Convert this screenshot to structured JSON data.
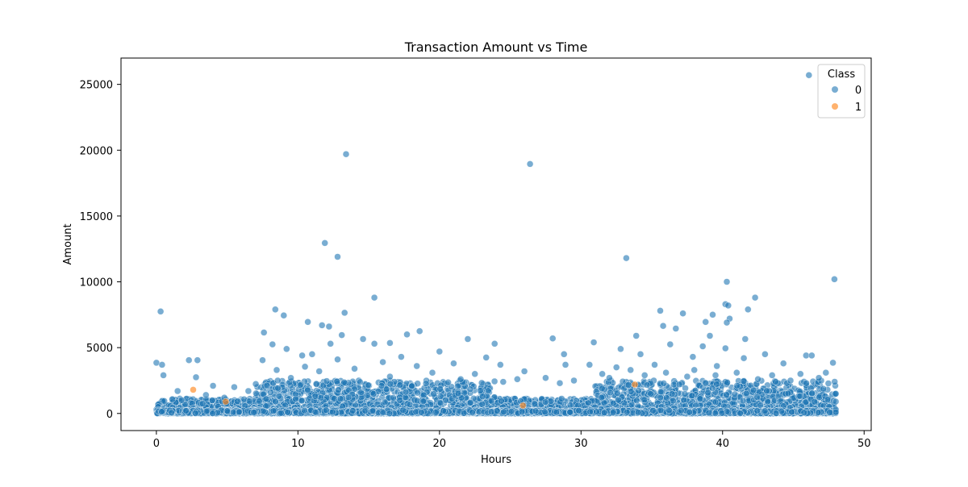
{
  "chart_data": {
    "type": "scatter",
    "title": "Transaction Amount vs Time",
    "xlabel": "Hours",
    "ylabel": "Amount",
    "xlim": [
      -2.5,
      50.5
    ],
    "ylim": [
      -1300,
      27000
    ],
    "xticks": [
      0,
      10,
      20,
      30,
      40,
      50
    ],
    "yticks": [
      0,
      5000,
      10000,
      15000,
      20000,
      25000
    ],
    "grid": false,
    "legend": {
      "title": "Class",
      "placement": "top-right",
      "entries": [
        "0",
        "1"
      ]
    },
    "colors": {
      "0": "#1f77b4",
      "1": "#ff7f0e"
    },
    "point_alpha": 0.6,
    "series": [
      {
        "name": "0",
        "points": [
          [
            46.1,
            25700
          ],
          [
            13.4,
            19700
          ],
          [
            26.4,
            18950
          ],
          [
            11.9,
            12950
          ],
          [
            12.8,
            11900
          ],
          [
            33.2,
            11800
          ],
          [
            47.9,
            10200
          ],
          [
            40.3,
            10000
          ],
          [
            15.4,
            8800
          ],
          [
            42.3,
            8800
          ],
          [
            40.2,
            8300
          ],
          [
            40.4,
            8200
          ],
          [
            8.4,
            7900
          ],
          [
            35.6,
            7800
          ],
          [
            41.8,
            7900
          ],
          [
            0.3,
            7750
          ],
          [
            13.3,
            7650
          ],
          [
            37.2,
            7600
          ],
          [
            39.3,
            7500
          ],
          [
            9.0,
            7450
          ],
          [
            40.5,
            7200
          ],
          [
            10.7,
            6950
          ],
          [
            38.8,
            6950
          ],
          [
            40.3,
            6900
          ],
          [
            11.7,
            6700
          ],
          [
            35.8,
            6650
          ],
          [
            12.2,
            6600
          ],
          [
            36.7,
            6450
          ],
          [
            18.6,
            6250
          ],
          [
            7.6,
            6150
          ],
          [
            17.7,
            6000
          ],
          [
            13.1,
            5950
          ],
          [
            39.1,
            5900
          ],
          [
            33.9,
            5900
          ],
          [
            22.0,
            5650
          ],
          [
            28.0,
            5700
          ],
          [
            41.6,
            5650
          ],
          [
            30.9,
            5400
          ],
          [
            12.3,
            5300
          ],
          [
            14.6,
            5650
          ],
          [
            8.2,
            5250
          ],
          [
            15.4,
            5300
          ],
          [
            16.5,
            5350
          ],
          [
            23.9,
            5300
          ],
          [
            36.3,
            5250
          ],
          [
            38.6,
            5100
          ],
          [
            32.8,
            4900
          ],
          [
            40.2,
            4950
          ],
          [
            9.2,
            4900
          ],
          [
            11.0,
            4500
          ],
          [
            43.0,
            4500
          ],
          [
            45.9,
            4400
          ],
          [
            10.3,
            4400
          ],
          [
            28.8,
            4500
          ],
          [
            34.2,
            4500
          ],
          [
            20.0,
            4700
          ],
          [
            37.9,
            4300
          ],
          [
            41.5,
            4200
          ],
          [
            46.3,
            4400
          ],
          [
            17.3,
            4300
          ],
          [
            23.3,
            4250
          ],
          [
            0.0,
            3850
          ],
          [
            0.4,
            3700
          ],
          [
            2.3,
            4050
          ],
          [
            2.9,
            4050
          ],
          [
            7.5,
            4050
          ],
          [
            12.8,
            4100
          ],
          [
            16.0,
            3900
          ],
          [
            21.0,
            3800
          ],
          [
            24.3,
            3700
          ],
          [
            28.9,
            3700
          ],
          [
            30.6,
            3700
          ],
          [
            35.2,
            3700
          ],
          [
            44.3,
            3800
          ],
          [
            47.8,
            3850
          ],
          [
            18.4,
            3600
          ],
          [
            26.0,
            3200
          ],
          [
            32.5,
            3500
          ],
          [
            39.6,
            3600
          ],
          [
            10.5,
            3550
          ],
          [
            5.5,
            2000
          ],
          [
            0.5,
            2900
          ],
          [
            2.8,
            2750
          ],
          [
            4.0,
            2100
          ],
          [
            6.5,
            1700
          ],
          [
            1.5,
            1700
          ],
          [
            3.5,
            1400
          ],
          [
            4.8,
            1200
          ],
          [
            8.5,
            3300
          ],
          [
            11.5,
            3200
          ],
          [
            14.0,
            3400
          ],
          [
            19.5,
            3100
          ],
          [
            22.5,
            3000
          ],
          [
            25.5,
            2600
          ],
          [
            27.5,
            2700
          ],
          [
            29.5,
            2500
          ],
          [
            31.5,
            3000
          ],
          [
            33.5,
            3300
          ],
          [
            36.0,
            3100
          ],
          [
            38.0,
            3300
          ],
          [
            41.0,
            3100
          ],
          [
            43.5,
            2900
          ],
          [
            45.5,
            3000
          ],
          [
            47.3,
            3100
          ],
          [
            9.5,
            2700
          ],
          [
            16.5,
            2800
          ],
          [
            21.5,
            2600
          ],
          [
            24.5,
            2400
          ],
          [
            28.5,
            2300
          ],
          [
            32.0,
            2700
          ],
          [
            34.5,
            2900
          ],
          [
            37.5,
            2800
          ],
          [
            39.5,
            2900
          ],
          [
            42.5,
            2600
          ],
          [
            44.8,
            2500
          ],
          [
            46.8,
            2700
          ],
          [
            48.0,
            1500
          ],
          [
            48.0,
            900
          ],
          [
            48.0,
            300
          ],
          [
            48.0,
            100
          ]
        ],
        "band": {
          "x_range": [
            0,
            48
          ],
          "y_range": [
            0,
            2500
          ],
          "note": "dense cloud of points"
        }
      },
      {
        "name": "1",
        "points": [
          [
            2.6,
            1800
          ],
          [
            4.9,
            900
          ],
          [
            25.9,
            600
          ],
          [
            33.8,
            2200
          ]
        ]
      }
    ]
  }
}
